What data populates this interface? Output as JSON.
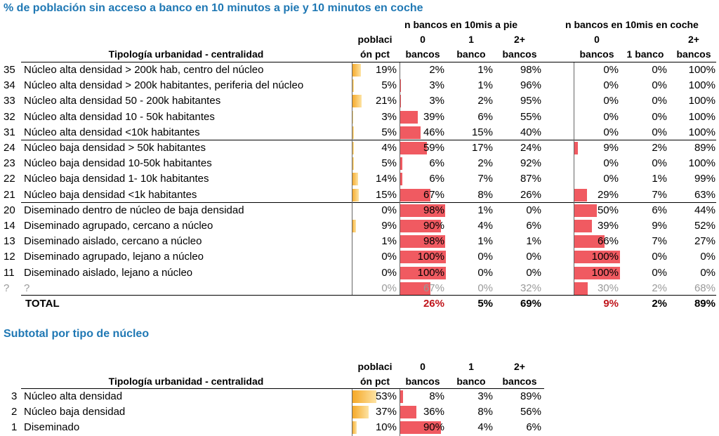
{
  "title": "% de población sin acceso a banco en 10 minutos a pie y 10 minutos en coche",
  "headers": {
    "walk_group": "n bancos en 10mis a pie",
    "car_group": "n bancos en 10mis en coche",
    "typology": "Tipología urbanidad - centralidad",
    "pop_l1": "poblaci",
    "pop_l2": "ón pct",
    "c0_l1": "0",
    "c0_l2": "bancos",
    "c1_l1": "1",
    "c1_l2": "banco",
    "c2_l1": "2+",
    "c2_l2": "bancos",
    "car_c1": "1 banco"
  },
  "rows": [
    {
      "code": "35",
      "name": "Núcleo alta densidad > 200k hab, centro del núcleo",
      "pop": "19%",
      "pop_v": 0.19,
      "w0": "2%",
      "w0_v": 0.02,
      "w1": "1%",
      "w2": "98%",
      "c0": "0%",
      "c0_v": 0,
      "c1": "0%",
      "c2": "100%"
    },
    {
      "code": "34",
      "name": "Núcleo alta densidad > 200k habitantes, periferia del núcleo",
      "pop": "5%",
      "pop_v": 0.05,
      "w0": "3%",
      "w0_v": 0.03,
      "w1": "1%",
      "w2": "96%",
      "c0": "0%",
      "c0_v": 0,
      "c1": "0%",
      "c2": "100%"
    },
    {
      "code": "33",
      "name": "Núcleo alta densidad 50 - 200k habitantes",
      "pop": "21%",
      "pop_v": 0.21,
      "w0": "3%",
      "w0_v": 0.03,
      "w1": "2%",
      "w2": "95%",
      "c0": "0%",
      "c0_v": 0,
      "c1": "0%",
      "c2": "100%"
    },
    {
      "code": "32",
      "name": "Núcleo alta densidad 10 - 50k habitantes",
      "pop": "3%",
      "pop_v": 0.03,
      "w0": "39%",
      "w0_v": 0.39,
      "w1": "6%",
      "w2": "55%",
      "c0": "0%",
      "c0_v": 0,
      "c1": "0%",
      "c2": "100%"
    },
    {
      "code": "31",
      "name": "Núcleo alta densidad <10k habitantes",
      "pop": "5%",
      "pop_v": 0.05,
      "w0": "46%",
      "w0_v": 0.46,
      "w1": "15%",
      "w2": "40%",
      "c0": "0%",
      "c0_v": 0,
      "c1": "0%",
      "c2": "100%"
    },
    {
      "code": "24",
      "name": "Núcleo baja densidad > 50k habitantes",
      "pop": "4%",
      "pop_v": 0.04,
      "w0": "59%",
      "w0_v": 0.59,
      "w1": "17%",
      "w2": "24%",
      "c0": "9%",
      "c0_v": 0.09,
      "c1": "2%",
      "c2": "89%"
    },
    {
      "code": "23",
      "name": "Núcleo baja densidad 10-50k habitantes",
      "pop": "5%",
      "pop_v": 0.05,
      "w0": "6%",
      "w0_v": 0.06,
      "w1": "2%",
      "w2": "92%",
      "c0": "0%",
      "c0_v": 0,
      "c1": "0%",
      "c2": "100%"
    },
    {
      "code": "22",
      "name": "Núcleo baja densidad 1- 10k habitantes",
      "pop": "14%",
      "pop_v": 0.14,
      "w0": "6%",
      "w0_v": 0.06,
      "w1": "7%",
      "w2": "87%",
      "c0": "0%",
      "c0_v": 0,
      "c1": "1%",
      "c2": "99%"
    },
    {
      "code": "21",
      "name": "Núcleo baja densidad <1k habitantes",
      "pop": "15%",
      "pop_v": 0.15,
      "w0": "67%",
      "w0_v": 0.67,
      "w1": "8%",
      "w2": "26%",
      "c0": "29%",
      "c0_v": 0.29,
      "c1": "7%",
      "c2": "63%"
    },
    {
      "code": "20",
      "name": "Diseminado dentro de núcleo de baja densidad",
      "pop": "0%",
      "pop_v": 0,
      "w0": "98%",
      "w0_v": 0.98,
      "w1": "1%",
      "w2": "0%",
      "c0": "50%",
      "c0_v": 0.5,
      "c1": "6%",
      "c2": "44%"
    },
    {
      "code": "14",
      "name": "Diseminado agrupado, cercano a núcleo",
      "pop": "9%",
      "pop_v": 0.09,
      "w0": "90%",
      "w0_v": 0.9,
      "w1": "4%",
      "w2": "6%",
      "c0": "39%",
      "c0_v": 0.39,
      "c1": "9%",
      "c2": "52%"
    },
    {
      "code": "13",
      "name": "Diseminado aislado, cercano a núcleo",
      "pop": "1%",
      "pop_v": 0.01,
      "w0": "98%",
      "w0_v": 0.98,
      "w1": "1%",
      "w2": "1%",
      "c0": "66%",
      "c0_v": 0.66,
      "c1": "7%",
      "c2": "27%"
    },
    {
      "code": "12",
      "name": "Diseminado agrupado, lejano a núcleo",
      "pop": "0%",
      "pop_v": 0,
      "w0": "100%",
      "w0_v": 1.0,
      "w1": "0%",
      "w2": "0%",
      "c0": "100%",
      "c0_v": 1.0,
      "c1": "0%",
      "c2": "0%"
    },
    {
      "code": "11",
      "name": "Diseminado aislado, lejano a núcleo",
      "pop": "0%",
      "pop_v": 0,
      "w0": "100%",
      "w0_v": 1.0,
      "w1": "0%",
      "w2": "0%",
      "c0": "100%",
      "c0_v": 1.0,
      "c1": "0%",
      "c2": "0%"
    },
    {
      "code": "?",
      "name": "?",
      "pop": "0%",
      "pop_v": 0,
      "w0": "67%",
      "w0_v": 0.67,
      "w1": "0%",
      "w2": "32%",
      "c0": "30%",
      "c0_v": 0.3,
      "c1": "2%",
      "c2": "68%",
      "muted": true
    }
  ],
  "total": {
    "label": "TOTAL",
    "w0": "26%",
    "w1": "5%",
    "w2": "69%",
    "c0": "9%",
    "c1": "2%",
    "c2": "89%"
  },
  "subtitle": "Subtotal por tipo de núcleo",
  "subtotals": [
    {
      "code": "3",
      "name": "Núcleo alta densidad",
      "pop": "53%",
      "pop_v": 0.53,
      "w0": "8%",
      "w0_v": 0.08,
      "w1": "3%",
      "w2": "89%"
    },
    {
      "code": "2",
      "name": "Núcleo baja densidad",
      "pop": "37%",
      "pop_v": 0.37,
      "w0": "36%",
      "w0_v": 0.36,
      "w1": "8%",
      "w2": "56%"
    },
    {
      "code": "1",
      "name": "Diseminado",
      "pop": "10%",
      "pop_v": 0.1,
      "w0": "90%",
      "w0_v": 0.9,
      "w1": "4%",
      "w2": "6%"
    }
  ],
  "colors": {
    "title": "#1f78b4",
    "pop_bar": "#f5a623",
    "zero_bar": "#f05a61",
    "total_red": "#c0151b",
    "muted": "#9a9a9a"
  }
}
